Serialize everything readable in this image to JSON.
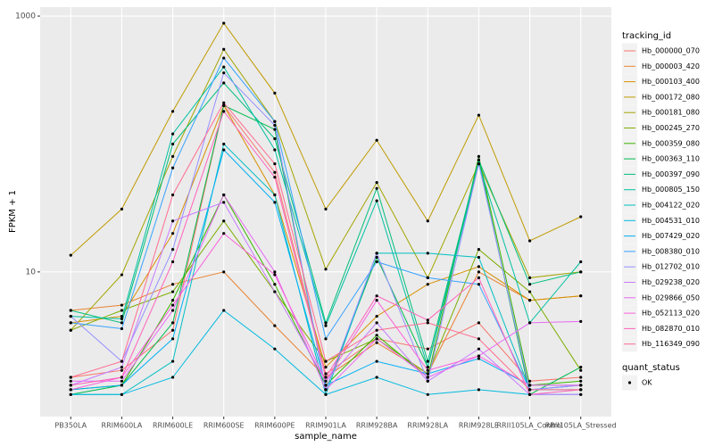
{
  "chart_data": {
    "type": "line",
    "x_label": "sample_name",
    "y_label": "FPKM + 1",
    "categories": [
      "PB350LA",
      "RRIM600LA",
      "RRIM600LE",
      "RRIM600SE",
      "RRIM600PE",
      "RRIM901LA",
      "RRIM928BA",
      "RRIM928LA",
      "RRIM928LE",
      "RRII105LA_Control",
      "RRII105LA_Stressed"
    ],
    "log_scale": true,
    "grid": true,
    "ylim": [
      0.74,
      1175
    ],
    "yticks": [
      10,
      1000
    ],
    "legend_title": "tracking_id",
    "shape_legend": {
      "title": "quant_status",
      "labels": [
        "OK"
      ],
      "color": "#000000"
    },
    "series": [
      {
        "name": "Hb_000000_070",
        "color": "#F8766D",
        "values": [
          1.5,
          1.7,
          3.5,
          200,
          60,
          1.6,
          3,
          2.5,
          4,
          1.4,
          1.5
        ]
      },
      {
        "name": "Hb_000003_420",
        "color": "#EA8331",
        "values": [
          5,
          5.5,
          8,
          10,
          3.8,
          1.5,
          2.8,
          1.6,
          10,
          6,
          6.5
        ]
      },
      {
        "name": "Hb_000103_400",
        "color": "#D89000",
        "values": [
          4,
          4.5,
          20,
          200,
          40,
          1.8,
          4.5,
          8,
          11,
          6,
          6.5
        ]
      },
      {
        "name": "Hb_000172_080",
        "color": "#C09B00",
        "values": [
          13.5,
          31,
          180,
          880,
          250,
          31,
          107,
          25,
          168,
          17.5,
          27
        ]
      },
      {
        "name": "Hb_000181_080",
        "color": "#A3A500",
        "values": [
          3.5,
          9.5,
          80,
          550,
          150,
          10.5,
          50,
          9,
          70,
          9,
          10
        ]
      },
      {
        "name": "Hb_000245_270",
        "color": "#7CAE00",
        "values": [
          3.5,
          5,
          7,
          25,
          7,
          2,
          3,
          1.6,
          15,
          7,
          1.7
        ]
      },
      {
        "name": "Hb_000359_080",
        "color": "#39B600",
        "values": [
          1.2,
          1.3,
          6,
          40,
          8,
          1.3,
          3.2,
          1.5,
          80,
          1.3,
          1.4
        ]
      },
      {
        "name": "Hb_000363_110",
        "color": "#00BB4E",
        "values": [
          1.1,
          1.3,
          4,
          200,
          130,
          1.2,
          13,
          1.8,
          75,
          1.1,
          1.8
        ]
      },
      {
        "name": "Hb_000397_090",
        "color": "#00BF7D",
        "values": [
          5,
          4,
          100,
          300,
          110,
          4,
          45,
          2,
          75,
          8,
          10
        ]
      },
      {
        "name": "Hb_000805_150",
        "color": "#00C1A3",
        "values": [
          4.5,
          4.3,
          120,
          400,
          90,
          3.8,
          36,
          1.8,
          70,
          4,
          12
        ]
      },
      {
        "name": "Hb_004122_020",
        "color": "#00BFC4",
        "values": [
          1.1,
          1.1,
          2,
          100,
          40,
          1.1,
          14,
          14,
          13,
          1.2,
          1.2
        ]
      },
      {
        "name": "Hb_004531_010",
        "color": "#00BAE0",
        "values": [
          1.1,
          1.1,
          1.5,
          5,
          2.5,
          1.1,
          1.5,
          1.1,
          1.2,
          1.1,
          1.1
        ]
      },
      {
        "name": "Hb_007429_020",
        "color": "#00B0F6",
        "values": [
          1.2,
          1.3,
          3,
          90,
          35,
          1.3,
          2,
          1.6,
          2.1,
          1.3,
          1.3
        ]
      },
      {
        "name": "Hb_008380_010",
        "color": "#35A2FF",
        "values": [
          4,
          3.6,
          65,
          470,
          150,
          3,
          12,
          9,
          8,
          1.2,
          1.3
        ]
      },
      {
        "name": "Hb_012702_010",
        "color": "#9590FF",
        "values": [
          4.5,
          2,
          15,
          360,
          140,
          1.2,
          14,
          1.4,
          70,
          1.2,
          1.3
        ]
      },
      {
        "name": "Hb_029238_020",
        "color": "#C77CFF",
        "values": [
          1.3,
          1.8,
          25,
          35,
          7,
          1.4,
          4,
          1.4,
          2.5,
          1.1,
          1.1
        ]
      },
      {
        "name": "Hb_029866_050",
        "color": "#E76BF3",
        "values": [
          1.4,
          1.4,
          5,
          40,
          10,
          1.2,
          3,
          1.5,
          2.2,
          4,
          4.1
        ]
      },
      {
        "name": "Hb_052113_020",
        "color": "#FA62DB",
        "values": [
          1.2,
          1.5,
          5.5,
          20,
          9.5,
          1.4,
          6,
          1.7,
          2.2,
          1.3,
          1.3
        ]
      },
      {
        "name": "Hb_082870_010",
        "color": "#FF62BC",
        "values": [
          1.3,
          1.5,
          12,
          180,
          55,
          1.5,
          6.5,
          4.2,
          9,
          1.1,
          1.2
        ]
      },
      {
        "name": "Hb_116349_090",
        "color": "#FF6C91",
        "values": [
          1.5,
          2,
          40,
          210,
          70,
          2,
          3.5,
          4,
          3,
          1.2,
          1.2
        ]
      }
    ]
  }
}
